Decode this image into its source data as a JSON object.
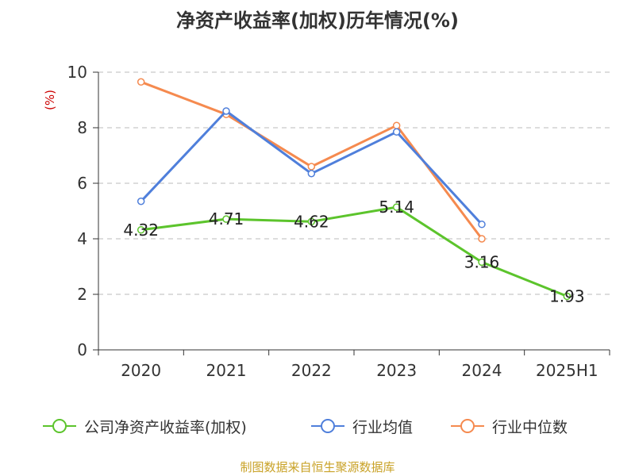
{
  "title": "净资产收益率(加权)历年情况(%)",
  "source": "制图数据来自恒生聚源数据库",
  "colors": {
    "company": "#5cc42c",
    "industry_avg": "#4f7fdb",
    "industry_median": "#f58a4f",
    "grid": "#bbbbbb",
    "axis": "#333333",
    "unit": "#cc0000",
    "text": "#333333"
  },
  "chart_data": {
    "type": "line",
    "title": "净资产收益率(加权)历年情况(%)",
    "ylabel": "(%)",
    "xlabel": "",
    "ylim": [
      0,
      10
    ],
    "yticks": [
      0,
      2,
      4,
      6,
      8,
      10
    ],
    "categories": [
      "2020",
      "2021",
      "2022",
      "2023",
      "2024",
      "2025H1"
    ],
    "grid": true,
    "legend_position": "bottom",
    "series": [
      {
        "name": "公司净资产收益率(加权)",
        "color": "#5cc42c",
        "values": [
          4.32,
          4.71,
          4.62,
          5.14,
          3.16,
          1.93
        ],
        "labels": [
          "4.32",
          "4.71",
          "4.62",
          "5.14",
          "3.16",
          "1.93"
        ]
      },
      {
        "name": "行业均值",
        "color": "#4f7fdb",
        "values": [
          5.35,
          8.6,
          6.35,
          7.85,
          4.52,
          null
        ]
      },
      {
        "name": "行业中位数",
        "color": "#f58a4f",
        "values": [
          9.65,
          8.48,
          6.6,
          8.08,
          4.0,
          null
        ]
      }
    ]
  }
}
